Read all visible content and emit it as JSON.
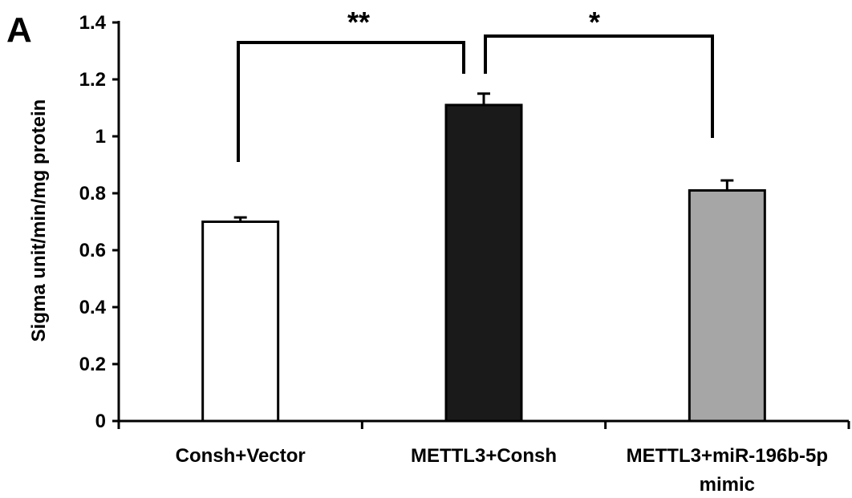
{
  "panel_label": "A",
  "chart_data": {
    "type": "bar",
    "categories": [
      "Consh+Vector",
      "METTL3+Consh",
      "METTL3+miR-196b-5p mimic"
    ],
    "category_lines": [
      [
        "Consh+Vector"
      ],
      [
        "METTL3+Consh"
      ],
      [
        "METTL3+miR-196b-5p",
        "mimic"
      ]
    ],
    "values": [
      0.7,
      1.11,
      0.81
    ],
    "errors": [
      0.015,
      0.04,
      0.035
    ],
    "bar_colors": [
      "#ffffff",
      "#1a1a1a",
      "#a6a6a6"
    ],
    "ylabel": "Sigma unit/min/mg protein",
    "ylim": [
      0,
      1.4
    ],
    "yticks": [
      "0",
      "0.2",
      "0.4",
      "0.6",
      "0.8",
      "1",
      "1.2",
      "1.4"
    ],
    "significance": [
      {
        "from": 0,
        "to": 1,
        "label": "**"
      },
      {
        "from": 1,
        "to": 2,
        "label": "*"
      }
    ]
  }
}
